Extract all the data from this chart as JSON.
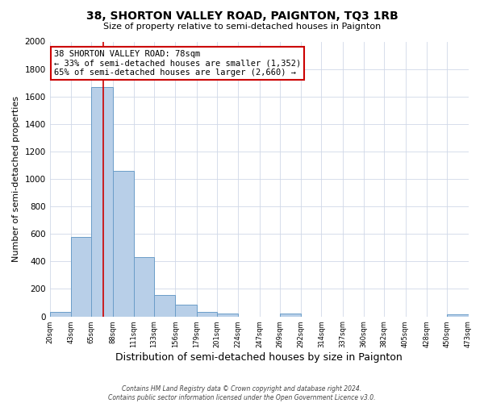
{
  "title": "38, SHORTON VALLEY ROAD, PAIGNTON, TQ3 1RB",
  "subtitle": "Size of property relative to semi-detached houses in Paignton",
  "xlabel": "Distribution of semi-detached houses by size in Paignton",
  "ylabel": "Number of semi-detached properties",
  "footer_line1": "Contains HM Land Registry data © Crown copyright and database right 2024.",
  "footer_line2": "Contains public sector information licensed under the Open Government Licence v3.0.",
  "bin_edges": [
    20,
    43,
    65,
    88,
    111,
    133,
    156,
    179,
    201,
    224,
    247,
    269,
    292,
    314,
    337,
    360,
    382,
    405,
    428,
    450,
    473
  ],
  "bin_values": [
    30,
    580,
    1670,
    1060,
    430,
    155,
    85,
    35,
    20,
    0,
    0,
    20,
    0,
    0,
    0,
    0,
    0,
    0,
    0,
    15
  ],
  "bar_color": "#b8cfe8",
  "bar_edge_color": "#6b9dc8",
  "property_sqm": 78,
  "property_line_color": "#cc0000",
  "annotation_box_color": "#ffffff",
  "annotation_border_color": "#cc0000",
  "annotation_text_line1": "38 SHORTON VALLEY ROAD: 78sqm",
  "annotation_text_line2": "← 33% of semi-detached houses are smaller (1,352)",
  "annotation_text_line3": "65% of semi-detached houses are larger (2,660) →",
  "ylim": [
    0,
    2000
  ],
  "yticks": [
    0,
    200,
    400,
    600,
    800,
    1000,
    1200,
    1400,
    1600,
    1800,
    2000
  ],
  "tick_labels": [
    "20sqm",
    "43sqm",
    "65sqm",
    "88sqm",
    "111sqm",
    "133sqm",
    "156sqm",
    "179sqm",
    "201sqm",
    "224sqm",
    "247sqm",
    "269sqm",
    "292sqm",
    "314sqm",
    "337sqm",
    "360sqm",
    "382sqm",
    "405sqm",
    "428sqm",
    "450sqm",
    "473sqm"
  ],
  "background_color": "#ffffff",
  "grid_color": "#d0d8e8"
}
